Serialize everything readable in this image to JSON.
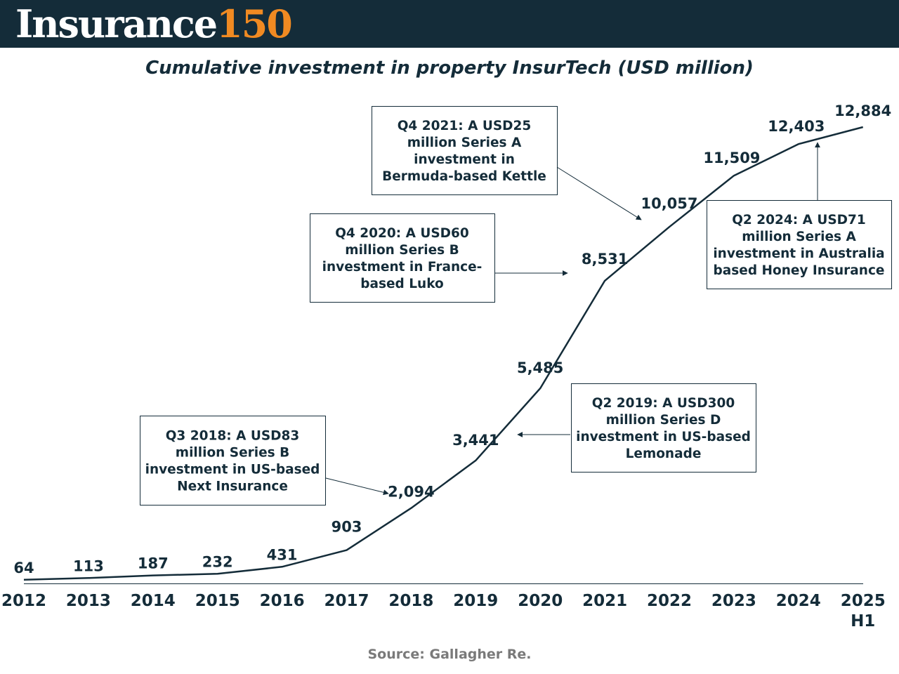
{
  "header": {
    "brand_word": "Insurance",
    "brand_number": "150"
  },
  "colors": {
    "header_bg": "#142c39",
    "brand_accent": "#f08a22",
    "line": "#142c39",
    "text": "#142c39"
  },
  "chart_data": {
    "type": "line",
    "title": "Cumulative investment in property InsurTech (USD million)",
    "x": [
      "2012",
      "2013",
      "2014",
      "2015",
      "2016",
      "2017",
      "2018",
      "2019",
      "2020",
      "2021",
      "2022",
      "2023",
      "2024",
      "2025 H1"
    ],
    "x_tick_labels": [
      [
        "2012"
      ],
      [
        "2013"
      ],
      [
        "2014"
      ],
      [
        "2015"
      ],
      [
        "2016"
      ],
      [
        "2017"
      ],
      [
        "2018"
      ],
      [
        "2019"
      ],
      [
        "2020"
      ],
      [
        "2021"
      ],
      [
        "2022"
      ],
      [
        "2023"
      ],
      [
        "2024"
      ],
      [
        "2025",
        "H1"
      ]
    ],
    "values": [
      64,
      113,
      187,
      232,
      431,
      903,
      2094,
      3441,
      5485,
      8531,
      10057,
      11509,
      12403,
      12884
    ],
    "data_labels": [
      "64",
      "113",
      "187",
      "232",
      "431",
      "903",
      "2,094",
      "3,441",
      "5,485",
      "8,531",
      "10,057",
      "11,509",
      "12,403",
      "12,884"
    ],
    "ylim": [
      0,
      12884
    ],
    "grid": false,
    "legend": false,
    "annotations": [
      {
        "point": "2018",
        "lines": [
          "Q3 2018: A USD83",
          "million Series B",
          "investment in US-based",
          "Next Insurance"
        ]
      },
      {
        "point": "2019",
        "lines": [
          "Q2 2019: A USD300",
          "million Series D",
          "investment in US-based",
          "Lemonade"
        ]
      },
      {
        "point": "2021",
        "lines": [
          "Q4 2020: A USD60",
          "million Series B",
          "investment in France-",
          "based Luko"
        ]
      },
      {
        "point": "2022",
        "lines": [
          "Q4 2021: A USD25",
          "million Series A",
          "investment in",
          "Bermuda-based Kettle"
        ]
      },
      {
        "point": "2024",
        "lines": [
          "Q2 2024: A USD71",
          "million Series A",
          "investment in Australia",
          "based Honey Insurance"
        ]
      }
    ]
  },
  "source": "Source: Gallagher Re."
}
